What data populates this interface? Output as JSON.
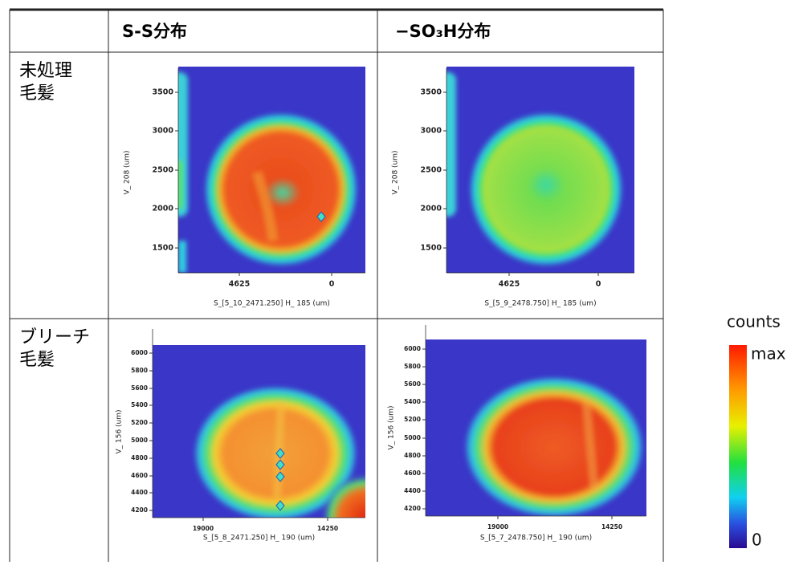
{
  "table": {
    "header": [
      "S-S分布",
      "−SO₃H分布"
    ],
    "rows": [
      {
        "label": [
          "未処理",
          "毛髪"
        ]
      },
      {
        "label": [
          "ブリーチ",
          "毛髪"
        ]
      }
    ]
  },
  "panels": [
    {
      "yticks": [
        3500,
        3000,
        2500,
        2000,
        1500
      ],
      "xticks": [
        4625,
        0
      ],
      "xlabel": "S_[5_10_2471.250]   H_  185 (um)",
      "ylabel": "V_  208 (um)"
    },
    {
      "yticks": [
        3500,
        3000,
        2500,
        2000,
        1500
      ],
      "xticks": [
        4625,
        0
      ],
      "xlabel": "S_[5_9_2478.750]   H_  185 (um)",
      "ylabel": "V_  208 (um)"
    },
    {
      "yticks": [
        6000,
        5800,
        5600,
        5400,
        5200,
        5000,
        4800,
        4600,
        4400,
        4200
      ],
      "xticks": [
        19000,
        14250
      ],
      "xlabel": "S_[5_8_2471.250]   H_  190 (um)",
      "ylabel": "V_  156 (um)"
    },
    {
      "yticks": [
        6000,
        5800,
        5600,
        5400,
        5200,
        5000,
        4800,
        4600,
        4400,
        4200
      ],
      "xticks": [
        19000,
        14250
      ],
      "xlabel": "S_[5_7_2478.750]   H_  190 (um)",
      "ylabel": "V_  156 (um)"
    }
  ],
  "colorbar": {
    "title": "counts",
    "max": "max",
    "min": 0
  }
}
